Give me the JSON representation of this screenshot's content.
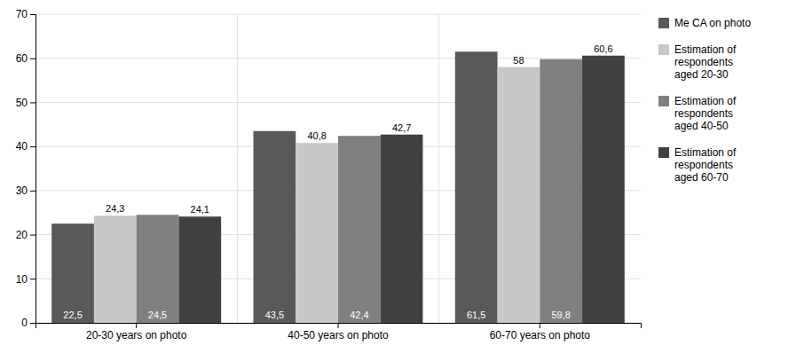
{
  "chart_data": {
    "type": "bar",
    "categories": [
      "20-30 years on photo",
      "40-50 years on photo",
      "60-70 years on photo"
    ],
    "series": [
      {
        "name": "Me CA on photo",
        "color": "#595959",
        "values": [
          22.5,
          43.5,
          61.5
        ],
        "value_labels": [
          "22,5",
          "43,5",
          "61,5"
        ]
      },
      {
        "name": "Estimation of\nrespondents\naged 20-30",
        "color": "#c8c8c8",
        "values": [
          24.3,
          40.8,
          58.0
        ],
        "value_labels": [
          "24,3",
          "40,8",
          "58"
        ]
      },
      {
        "name": "Estimation of\nrespondents\naged 40-50",
        "color": "#808080",
        "values": [
          24.5,
          42.4,
          59.8
        ],
        "value_labels": [
          "24,5",
          "42,4",
          "59,8"
        ]
      },
      {
        "name": "Estimation of\nrespondents\naged 60-70",
        "color": "#404040",
        "values": [
          24.1,
          42.7,
          60.6
        ],
        "value_labels": [
          "24,1",
          "42,7",
          "60,6"
        ]
      }
    ],
    "ylim": [
      0,
      70
    ],
    "yticks": [
      0,
      10,
      20,
      30,
      40,
      50,
      60,
      70
    ],
    "grid": true,
    "legend": "right",
    "data_labels": true
  }
}
